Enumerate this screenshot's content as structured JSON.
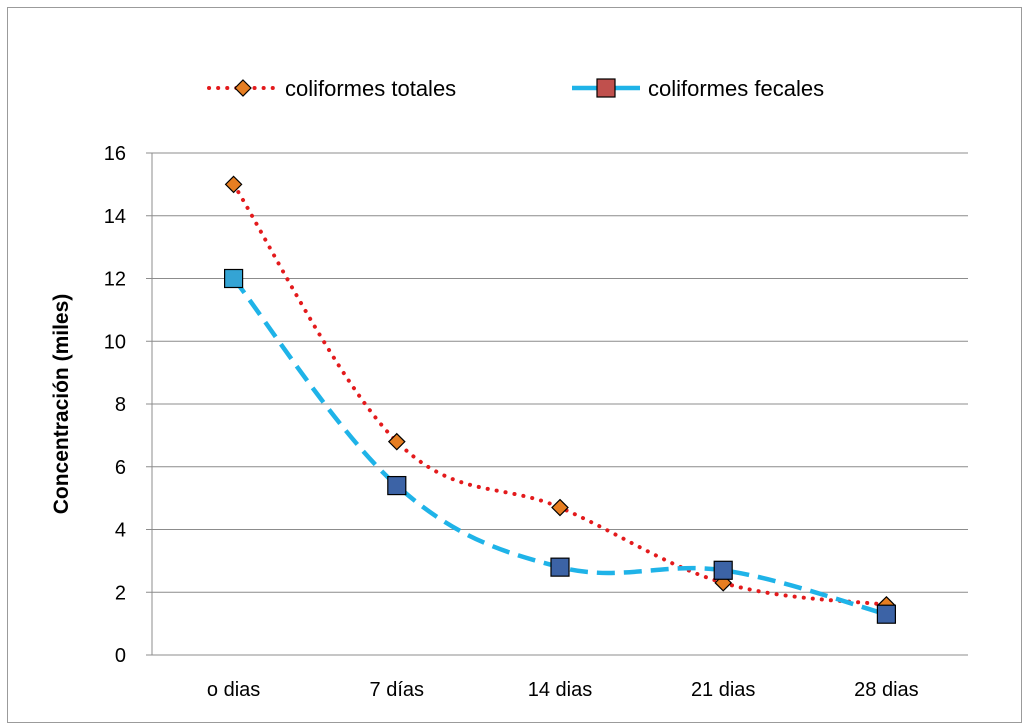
{
  "chart_data": {
    "type": "line",
    "categories": [
      "o dias",
      "7 días",
      "14 dias",
      "21 dias",
      "28 dias"
    ],
    "series": [
      {
        "name": "coliformes totales",
        "values": [
          15,
          6.8,
          4.7,
          2.3,
          1.6
        ],
        "line_color": "#e31a1c",
        "line_style": "dotted",
        "marker": "diamond",
        "marker_color": "#e67e22"
      },
      {
        "name": "coliformes fecales",
        "values": [
          12,
          5.4,
          2.8,
          2.7,
          1.3
        ],
        "line_color": "#1fb3e8",
        "line_style": "dashed",
        "marker": "square",
        "marker_color": "#3c63a6"
      }
    ],
    "title": "",
    "xlabel": "",
    "ylabel": "Concentración (miles)",
    "ylim": [
      0,
      16
    ],
    "yticks": [
      "0",
      "2",
      "4",
      "6",
      "8",
      "10",
      "12",
      "14",
      "16"
    ],
    "grid": true,
    "legend_position": "top"
  }
}
